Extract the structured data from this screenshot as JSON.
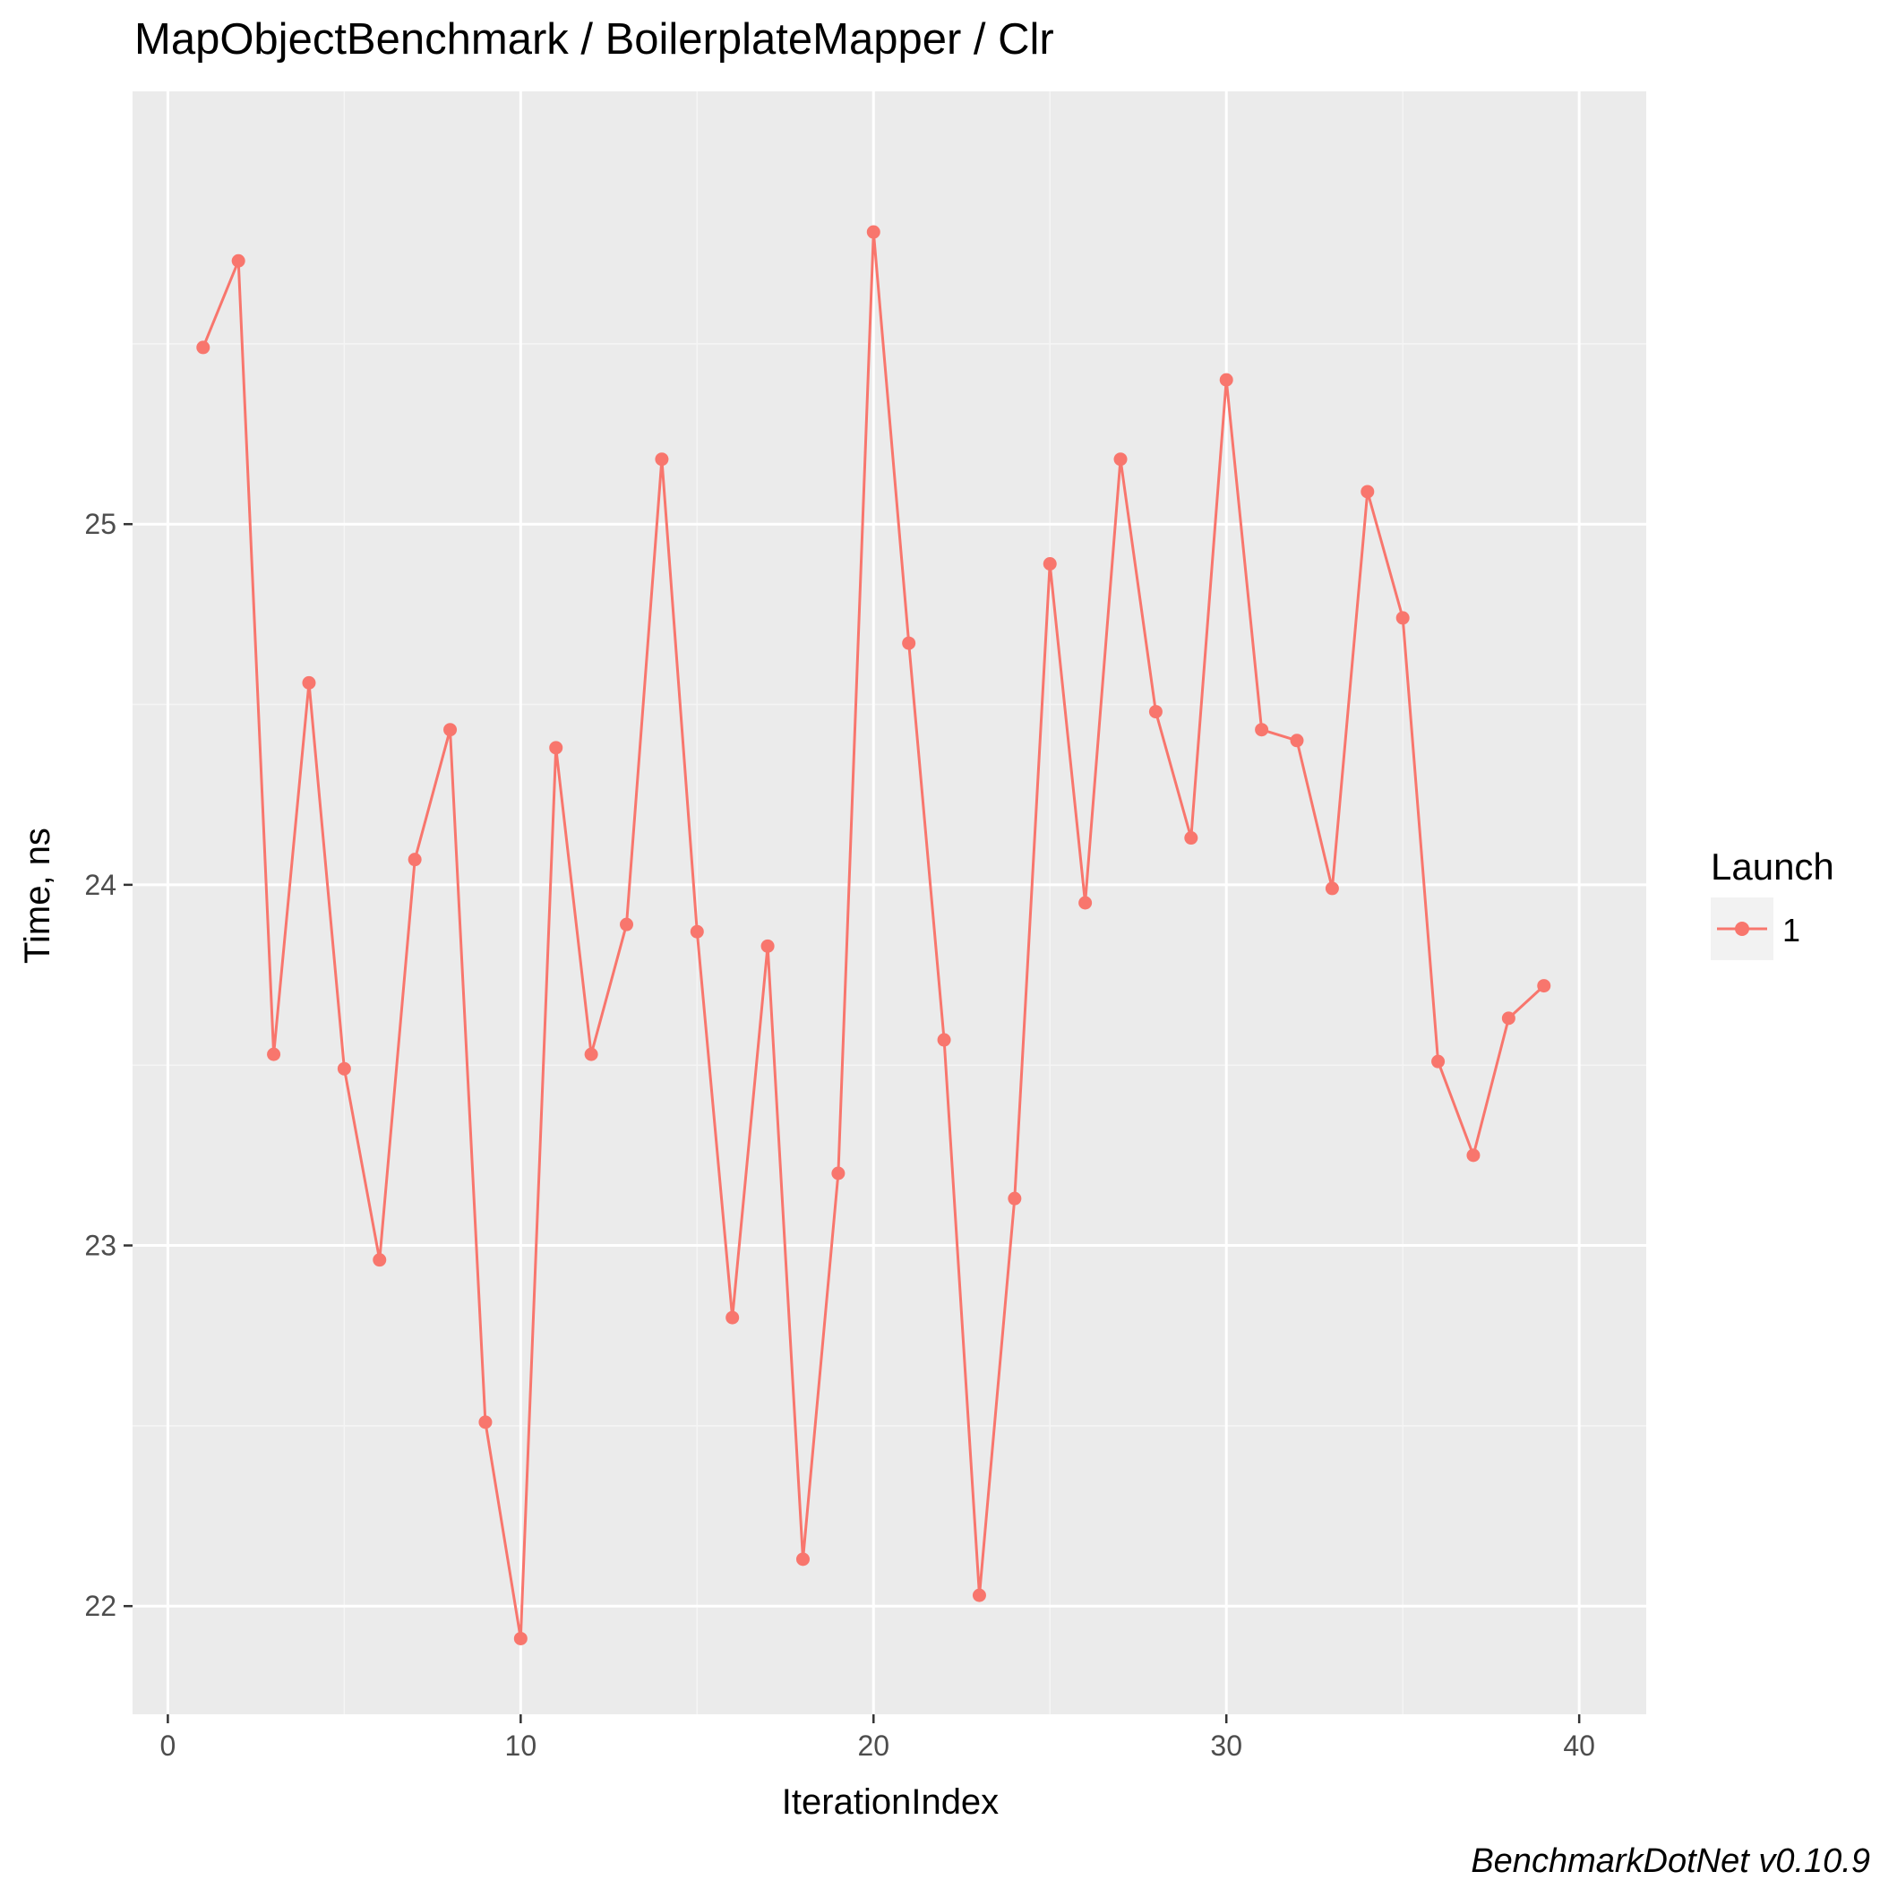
{
  "chart_data": {
    "type": "line",
    "title": "MapObjectBenchmark / BoilerplateMapper / Clr",
    "xlabel": "IterationIndex",
    "ylabel": "Time, ns",
    "caption": "BenchmarkDotNet v0.10.9",
    "xlim": [
      -1,
      41.9
    ],
    "ylim": [
      21.7,
      26.2
    ],
    "x_ticks": [
      0,
      10,
      20,
      30,
      40
    ],
    "x_tick_labels": [
      "0",
      "10",
      "20",
      "30",
      "40"
    ],
    "y_ticks": [
      22,
      23,
      24,
      25
    ],
    "y_tick_labels": [
      "22",
      "23",
      "24",
      "25"
    ],
    "grid": true,
    "legend": {
      "title": "Launch",
      "placement": "right"
    },
    "series": [
      {
        "name": "1",
        "color": "#F8766D",
        "x": [
          1,
          2,
          3,
          4,
          5,
          6,
          7,
          8,
          9,
          10,
          11,
          12,
          13,
          14,
          15,
          16,
          17,
          18,
          19,
          20,
          21,
          22,
          23,
          24,
          25,
          26,
          27,
          28,
          29,
          30,
          31,
          32,
          33,
          34,
          35,
          36,
          37,
          38,
          39
        ],
        "values": [
          25.49,
          25.73,
          23.53,
          24.56,
          23.49,
          22.96,
          24.07,
          24.43,
          22.51,
          21.91,
          24.38,
          23.53,
          23.89,
          25.18,
          23.87,
          22.8,
          23.83,
          22.13,
          23.2,
          25.81,
          24.67,
          23.57,
          22.03,
          23.13,
          24.89,
          23.95,
          25.18,
          24.48,
          24.13,
          25.4,
          24.43,
          24.4,
          23.99,
          25.09,
          24.74,
          23.51,
          23.25,
          23.63,
          23.72
        ]
      }
    ]
  },
  "colors": {
    "panel_background": "#EBEBEB",
    "grid_major": "#FFFFFF",
    "grid_minor": "#F5F5F5",
    "series": "#F8766D",
    "text": "#000000",
    "tick_text": "#4D4D4D",
    "tick_mark": "#333333",
    "legend_key_background": "#F2F2F2"
  }
}
